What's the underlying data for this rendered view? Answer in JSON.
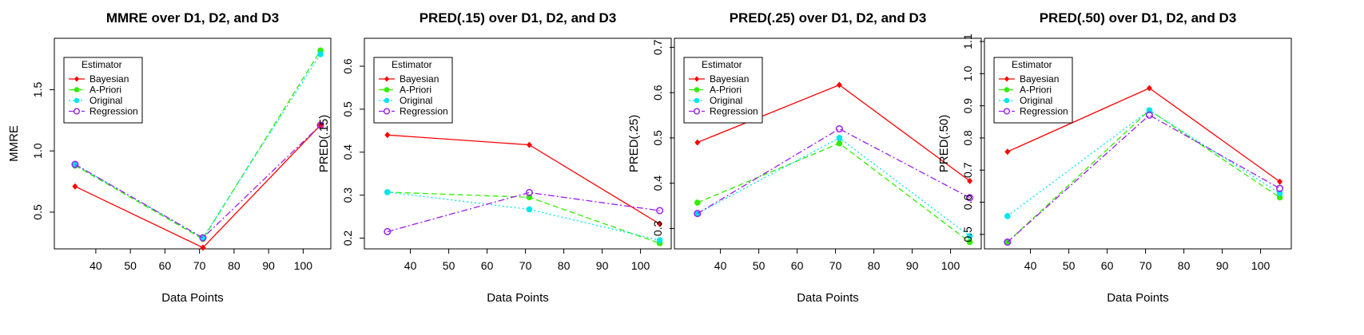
{
  "chart_data": [
    {
      "type": "line",
      "title": "MMRE over D1, D2, and D3",
      "xlabel": "Data Points",
      "ylabel": "MMRE",
      "x": [
        34,
        71,
        105
      ],
      "xlim": [
        28,
        108
      ],
      "xticks": [
        40,
        50,
        60,
        70,
        80,
        90,
        100
      ],
      "ylim": [
        0.2,
        1.92
      ],
      "yticks": [
        "0.5",
        "1.0",
        "1.5"
      ],
      "legend_title": "Estimator",
      "legend_position": "top-left",
      "series": [
        {
          "name": "Bayesian",
          "values": [
            0.71,
            0.21,
            1.21
          ],
          "color": "#ff0000",
          "marker": "diamond",
          "dash": ""
        },
        {
          "name": "A-Priori",
          "values": [
            0.88,
            0.28,
            1.82
          ],
          "color": "#33ee00",
          "marker": "dot",
          "dash": "7,4"
        },
        {
          "name": "Original",
          "values": [
            0.89,
            0.29,
            1.79
          ],
          "color": "#00e5ee",
          "marker": "dot",
          "dash": "2,3"
        },
        {
          "name": "Regression",
          "values": [
            0.89,
            0.29,
            1.21
          ],
          "color": "#9a1ef0",
          "marker": "circle",
          "dash": "8,3,2,3"
        }
      ]
    },
    {
      "type": "line",
      "title": "PRED(.15) over D1, D2, and D3",
      "xlabel": "Data Points",
      "ylabel": "PRED(.15)",
      "x": [
        34,
        71,
        105
      ],
      "xlim": [
        28,
        108
      ],
      "xticks": [
        40,
        50,
        60,
        70,
        80,
        90,
        100
      ],
      "ylim": [
        0.175,
        0.665
      ],
      "yticks": [
        "0.2",
        "0.3",
        "0.4",
        "0.5",
        "0.6"
      ],
      "legend_title": "Estimator",
      "legend_position": "top-left",
      "series": [
        {
          "name": "Bayesian",
          "values": [
            0.44,
            0.417,
            0.233
          ],
          "color": "#ff0000",
          "marker": "diamond",
          "dash": ""
        },
        {
          "name": "A-Priori",
          "values": [
            0.307,
            0.295,
            0.188
          ],
          "color": "#33ee00",
          "marker": "dot",
          "dash": "7,4"
        },
        {
          "name": "Original",
          "values": [
            0.307,
            0.267,
            0.195
          ],
          "color": "#00e5ee",
          "marker": "dot",
          "dash": "2,3"
        },
        {
          "name": "Regression",
          "values": [
            0.215,
            0.306,
            0.264
          ],
          "color": "#9a1ef0",
          "marker": "circle",
          "dash": "8,3,2,3"
        }
      ]
    },
    {
      "type": "line",
      "title": "PRED(.25) over D1, D2, and D3",
      "xlabel": "Data Points",
      "ylabel": "PRED(.25)",
      "x": [
        34,
        71,
        105
      ],
      "xlim": [
        28,
        108
      ],
      "xticks": [
        40,
        50,
        60,
        70,
        80,
        90,
        100
      ],
      "ylim": [
        0.255,
        0.72
      ],
      "yticks": [
        "0.3",
        "0.4",
        "0.5",
        "0.6",
        "0.7"
      ],
      "legend_title": "Estimator",
      "legend_position": "top-left",
      "series": [
        {
          "name": "Bayesian",
          "values": [
            0.49,
            0.617,
            0.405
          ],
          "color": "#ff0000",
          "marker": "diamond",
          "dash": ""
        },
        {
          "name": "A-Priori",
          "values": [
            0.357,
            0.488,
            0.27
          ],
          "color": "#33ee00",
          "marker": "dot",
          "dash": "7,4"
        },
        {
          "name": "Original",
          "values": [
            0.333,
            0.5,
            0.283
          ],
          "color": "#00e5ee",
          "marker": "dot",
          "dash": "2,3"
        },
        {
          "name": "Regression",
          "values": [
            0.333,
            0.52,
            0.368
          ],
          "color": "#9a1ef0",
          "marker": "circle",
          "dash": "8,3,2,3"
        }
      ]
    },
    {
      "type": "line",
      "title": "PRED(.50) over D1, D2, and D3",
      "xlabel": "Data Points",
      "ylabel": "PRED(.50)",
      "x": [
        34,
        71,
        105
      ],
      "xlim": [
        28,
        108
      ],
      "xticks": [
        40,
        50,
        60,
        70,
        80,
        90,
        100
      ],
      "ylim": [
        0.455,
        1.11
      ],
      "yticks": [
        "0.5",
        "0.6",
        "0.7",
        "0.8",
        "0.9",
        "1.0",
        "1.1"
      ],
      "legend_title": "Estimator",
      "legend_position": "top-left",
      "series": [
        {
          "name": "Bayesian",
          "values": [
            0.757,
            0.955,
            0.664
          ],
          "color": "#ff0000",
          "marker": "diamond",
          "dash": ""
        },
        {
          "name": "A-Priori",
          "values": [
            0.476,
            0.886,
            0.615
          ],
          "color": "#33ee00",
          "marker": "dot",
          "dash": "7,4"
        },
        {
          "name": "Original",
          "values": [
            0.557,
            0.886,
            0.628
          ],
          "color": "#00e5ee",
          "marker": "dot",
          "dash": "2,3"
        },
        {
          "name": "Regression",
          "values": [
            0.476,
            0.871,
            0.643
          ],
          "color": "#9a1ef0",
          "marker": "circle",
          "dash": "8,3,2,3"
        }
      ]
    }
  ]
}
